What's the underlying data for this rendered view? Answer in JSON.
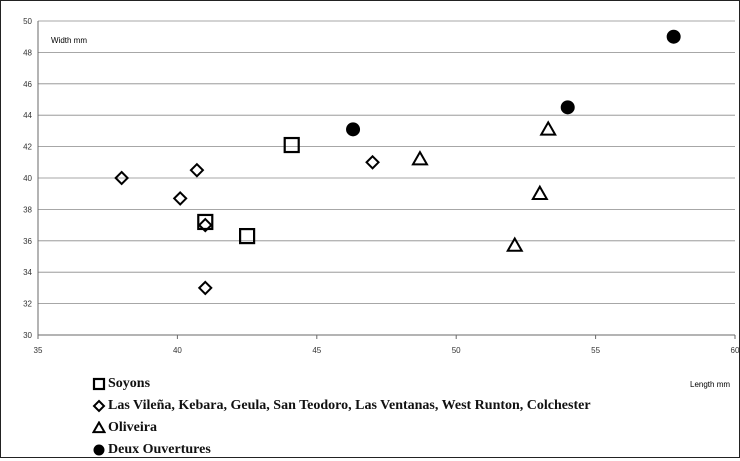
{
  "chart_data": {
    "type": "scatter",
    "xlabel": "Length mm",
    "ylabel": "Width mm",
    "xlim": [
      35,
      60
    ],
    "ylim": [
      30,
      50
    ],
    "xticks": [
      35,
      40,
      45,
      50,
      55,
      60
    ],
    "yticks": [
      30,
      32,
      34,
      36,
      38,
      40,
      42,
      44,
      46,
      48,
      50
    ],
    "grid": "horizontal",
    "legend_position": "bottom",
    "series": [
      {
        "name": "Soyons",
        "marker": "square",
        "points": [
          [
            41.0,
            37.2
          ],
          [
            42.5,
            36.3
          ],
          [
            44.1,
            42.1
          ]
        ]
      },
      {
        "name": "Las Vileña, Kebara, Geula, San Teodoro, Las Ventanas, West Runton, Colchester",
        "marker": "diamond",
        "points": [
          [
            38.0,
            40.0
          ],
          [
            40.1,
            38.7
          ],
          [
            40.7,
            40.5
          ],
          [
            41.0,
            37.0
          ],
          [
            41.0,
            33.0
          ],
          [
            47.0,
            41.0
          ]
        ]
      },
      {
        "name": "Oliveira",
        "marker": "triangle",
        "points": [
          [
            48.7,
            41.2
          ],
          [
            52.1,
            35.7
          ],
          [
            53.0,
            39.0
          ],
          [
            53.3,
            43.1
          ]
        ]
      },
      {
        "name": "Deux Ouvertures",
        "marker": "circle",
        "points": [
          [
            46.3,
            43.1
          ],
          [
            54.0,
            44.5
          ],
          [
            57.8,
            49.0
          ]
        ]
      }
    ]
  }
}
